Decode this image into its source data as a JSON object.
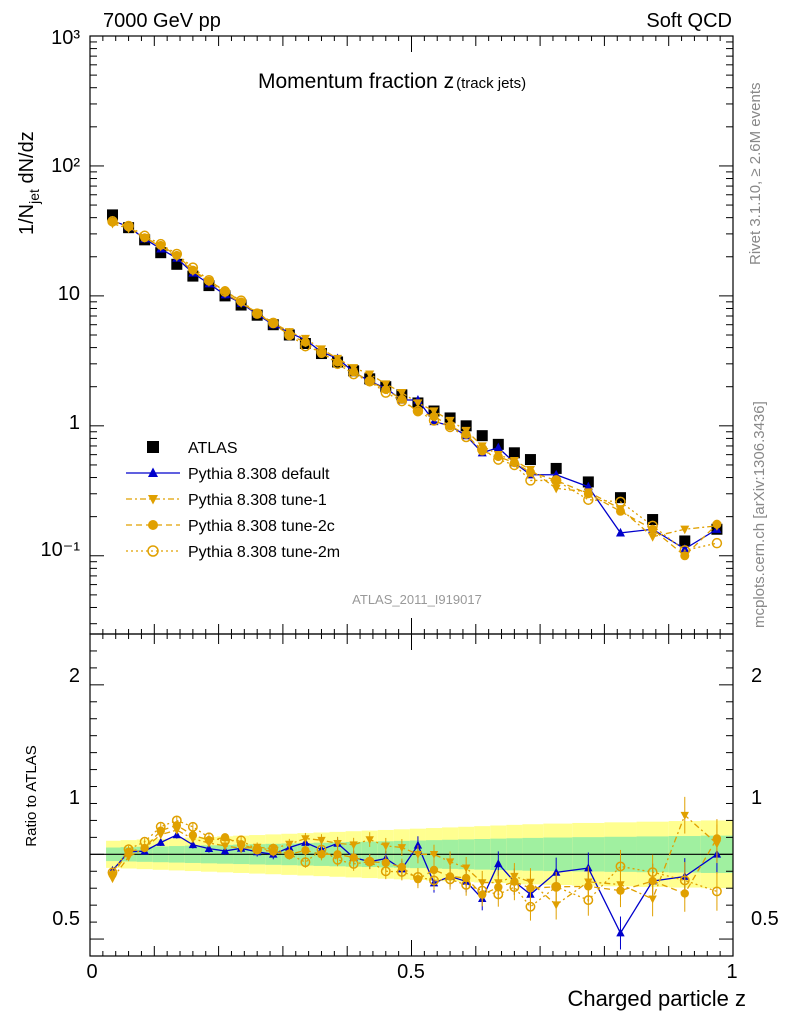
{
  "header": {
    "left": "7000 GeV pp",
    "right": "Soft QCD"
  },
  "side_labels": {
    "rivet": "Rivet 3.1.10, ≥ 2.6M events",
    "mcplots": "mcplots.cern.ch [arXiv:1306.3436]"
  },
  "chart_data": [
    {
      "type": "scatter",
      "title": "Momentum fraction z",
      "title_sub": "(track jets)",
      "ylabel_main": "1/N",
      "ylabel_sub": "jet",
      "ylabel_tail": " dN/dz",
      "analysis_label": "ATLAS_2011_I919017",
      "yscale": "log",
      "xlim": [
        0,
        1
      ],
      "ylim": [
        0.025,
        1000
      ],
      "ytick_labels": [
        "10⁻¹",
        "1",
        "10",
        "10²",
        "10³"
      ],
      "legend_position": "lower-left",
      "x": [
        0.035,
        0.06,
        0.085,
        0.11,
        0.135,
        0.16,
        0.185,
        0.21,
        0.235,
        0.26,
        0.285,
        0.31,
        0.335,
        0.36,
        0.385,
        0.41,
        0.435,
        0.46,
        0.485,
        0.51,
        0.535,
        0.56,
        0.585,
        0.61,
        0.635,
        0.66,
        0.685,
        0.725,
        0.775,
        0.825,
        0.875,
        0.925,
        0.975
      ],
      "series": [
        {
          "name": "ATLAS",
          "color": "#000000",
          "marker": "square",
          "values": [
            42,
            33.5,
            27,
            21.5,
            17.5,
            14.2,
            12,
            10,
            8.5,
            7.1,
            6,
            5,
            4.3,
            3.6,
            3.1,
            2.65,
            2.3,
            2.0,
            1.73,
            1.5,
            1.3,
            1.15,
            1.0,
            0.84,
            0.72,
            0.62,
            0.55,
            0.47,
            0.37,
            0.28,
            0.19,
            0.13,
            0.16
          ]
        },
        {
          "name": "Pythia 8.308 default",
          "color": "#0000cc",
          "marker": "triangle-up",
          "line": "solid",
          "values": [
            38,
            34,
            27.5,
            23,
            19.5,
            15,
            12.4,
            10.2,
            8.8,
            7.2,
            6,
            5.2,
            4.6,
            3.7,
            3.3,
            2.6,
            2.2,
            1.95,
            1.58,
            1.58,
            1.08,
            1.0,
            0.84,
            0.62,
            0.68,
            0.52,
            0.42,
            0.42,
            0.34,
            0.15,
            0.16,
            0.113,
            0.16
          ]
        },
        {
          "name": "Pythia 8.308 tune-1",
          "color": "#e0a000",
          "marker": "triangle-down",
          "line": "dashdot",
          "values": [
            36,
            33,
            28,
            24,
            20,
            15.5,
            12.8,
            10.5,
            8.8,
            7.4,
            6.2,
            5.3,
            4.7,
            3.9,
            3.3,
            2.8,
            2.5,
            2.1,
            1.8,
            1.5,
            1.3,
            1.1,
            0.92,
            0.7,
            0.6,
            0.54,
            0.46,
            0.33,
            0.31,
            0.23,
            0.14,
            0.16,
            0.17
          ]
        },
        {
          "name": "Pythia 8.308 tune-2c",
          "color": "#e0a000",
          "marker": "circle",
          "line": "dashed",
          "values": [
            37,
            34,
            28,
            24.5,
            20.5,
            15.8,
            13,
            11,
            9,
            7.3,
            6.1,
            5,
            4.4,
            3.6,
            3.1,
            2.6,
            2.2,
            1.9,
            1.6,
            1.28,
            1.18,
            1.0,
            0.86,
            0.64,
            0.58,
            0.52,
            0.44,
            0.38,
            0.3,
            0.22,
            0.16,
            0.1,
            0.175
          ]
        },
        {
          "name": "Pythia 8.308 tune-2m",
          "color": "#e0a000",
          "marker": "circle-open",
          "line": "dotted",
          "values": [
            37.5,
            34.5,
            29,
            25,
            21,
            16.5,
            13.2,
            10.8,
            9.2,
            7.3,
            6.2,
            5,
            4.1,
            3.7,
            3.0,
            2.5,
            2.2,
            1.8,
            1.55,
            1.3,
            1.1,
            0.98,
            0.82,
            0.66,
            0.55,
            0.5,
            0.38,
            0.38,
            0.27,
            0.26,
            0.17,
            0.11,
            0.125
          ]
        }
      ]
    },
    {
      "type": "scatter",
      "ylabel": "Ratio to ATLAS",
      "ylim": [
        0.4,
        2.3
      ],
      "ytick_labels": [
        "0.5",
        "1",
        "2"
      ],
      "xtick_labels": [
        "0",
        "0.5",
        "1"
      ],
      "xlabel": "Charged particle z",
      "reference_line": 1,
      "band_colors": {
        "inner": "#a0f0a0",
        "outer": "#ffff90"
      }
    }
  ]
}
